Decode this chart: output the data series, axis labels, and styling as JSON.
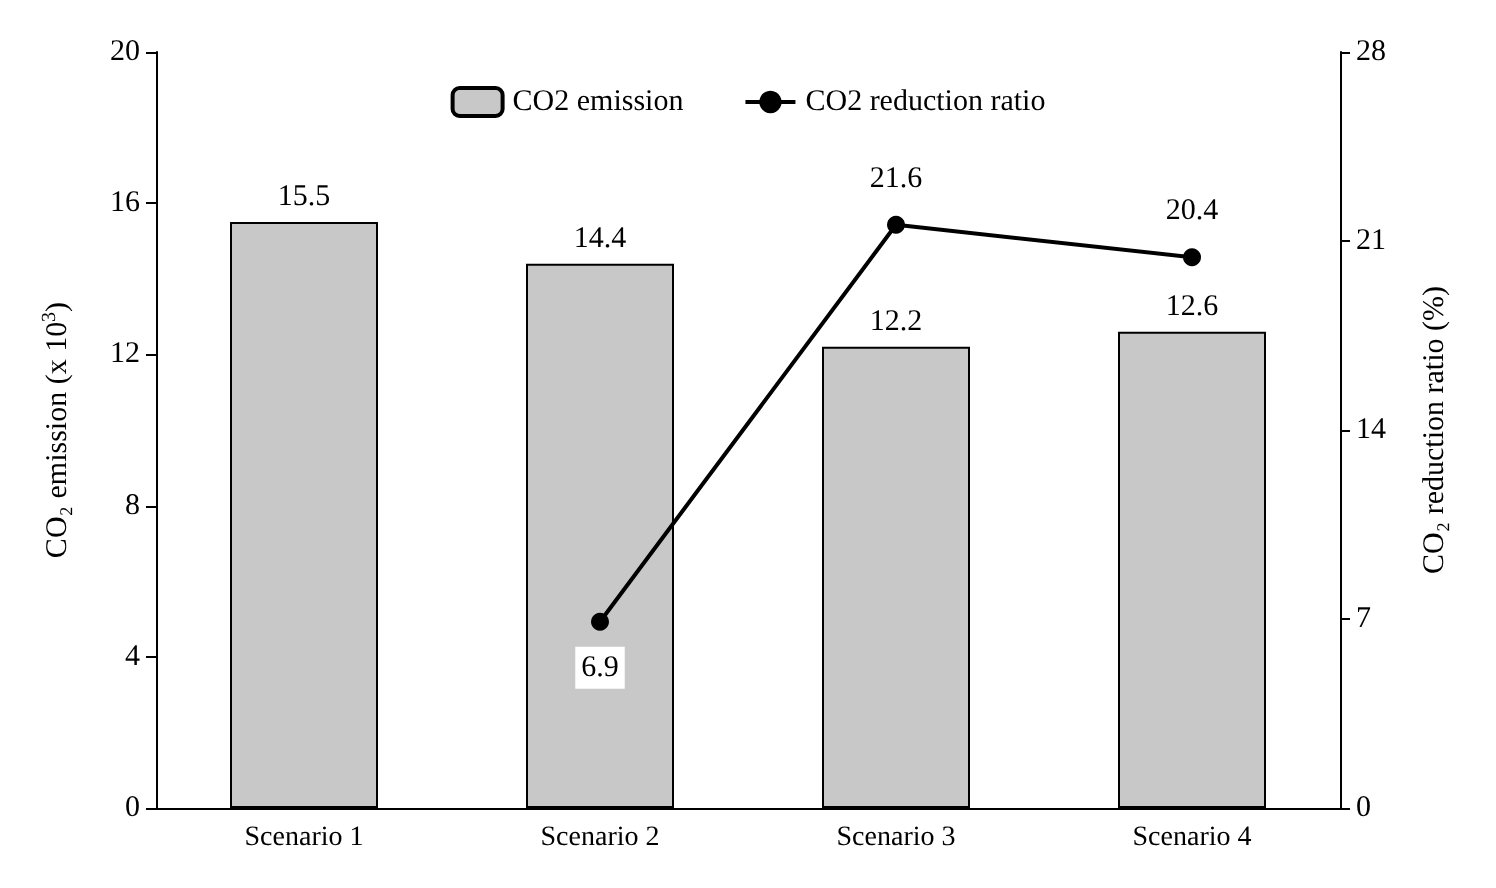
{
  "chart_data": {
    "type": "bar",
    "categories": [
      "Scenario 1",
      "Scenario 2",
      "Scenario 3",
      "Scenario 4"
    ],
    "series": [
      {
        "name": "CO2 emission",
        "color": "#c8c8c8",
        "values": [
          15.5,
          14.4,
          12.2,
          12.6
        ]
      },
      {
        "name": "CO2 reduction ratio",
        "type": "line",
        "axis": "y2",
        "color": "#000000",
        "values": [
          null,
          6.9,
          21.6,
          20.4
        ]
      }
    ],
    "ylabel": "CO₂ emission (x 10$^{3}$)",
    "y2label": "CO₂ reduction ratio (%)",
    "ylim": [
      0,
      20
    ],
    "yticks": [
      0,
      4,
      8,
      12,
      16,
      20
    ],
    "y2lim": [
      0,
      28
    ],
    "y2ticks": [
      0,
      7,
      14,
      21,
      28
    ],
    "data_labels": true,
    "legend": "top",
    "marker": "circle",
    "line_style": "solid",
    "grid": false
  }
}
